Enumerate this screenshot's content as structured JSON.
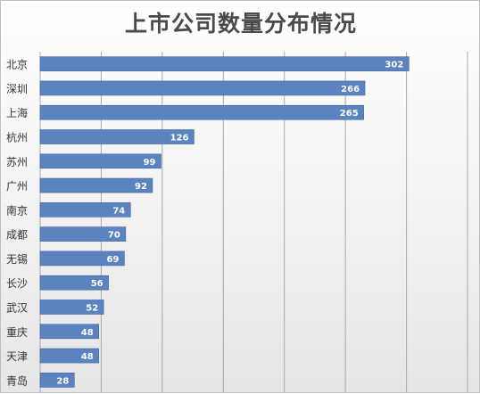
{
  "chart_data": {
    "type": "bar",
    "orientation": "horizontal",
    "title": "上市公司数量分布情况",
    "categories": [
      "北京",
      "深圳",
      "上海",
      "杭州",
      "苏州",
      "广州",
      "南京",
      "成都",
      "无锡",
      "长沙",
      "武汉",
      "重庆",
      "天津",
      "青岛"
    ],
    "values": [
      302,
      266,
      265,
      126,
      99,
      92,
      74,
      70,
      69,
      56,
      52,
      48,
      48,
      28
    ],
    "xlim": [
      0,
      350
    ],
    "grid": true,
    "data_labels": true,
    "colors": {
      "bar": "#5b83c0",
      "bar_edge": "#3e66a3",
      "label": "#ffffff",
      "grid": "#a8a8a8",
      "axis_text": "#333333"
    }
  }
}
